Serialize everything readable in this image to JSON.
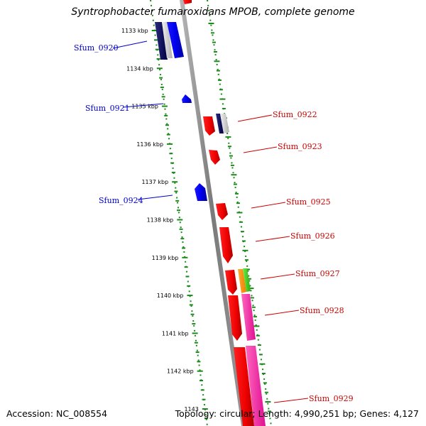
{
  "title": "Syntrophobacter fumaroxidans MPOB, complete genome",
  "accession": "Accession: NC_008554",
  "topology": "Topology: circular; Length: 4,990,251 bp; Genes: 4,127",
  "colors": {
    "forward_label": "#0000cc",
    "reverse_label": "#cc0000",
    "tick": "#1a8a1a",
    "backbone": "#888888"
  },
  "scale_labels": [
    "1133 kbp",
    "1134 kbp",
    "1135 kbp",
    "1136 kbp",
    "1137 kbp",
    "1138 kbp",
    "1139 kbp",
    "1140 kbp",
    "1141 kbp",
    "1142 kbp",
    "1143"
  ],
  "genes": [
    {
      "name": "Sfum_0920",
      "strand": "forward"
    },
    {
      "name": "Sfum_0921",
      "strand": "forward"
    },
    {
      "name": "Sfum_0922",
      "strand": "reverse"
    },
    {
      "name": "Sfum_0923",
      "strand": "reverse"
    },
    {
      "name": "Sfum_0924",
      "strand": "forward"
    },
    {
      "name": "Sfum_0925",
      "strand": "reverse"
    },
    {
      "name": "Sfum_0926",
      "strand": "reverse"
    },
    {
      "name": "Sfum_0927",
      "strand": "reverse"
    },
    {
      "name": "Sfum_0928",
      "strand": "reverse"
    },
    {
      "name": "Sfum_0929",
      "strand": "reverse"
    }
  ]
}
